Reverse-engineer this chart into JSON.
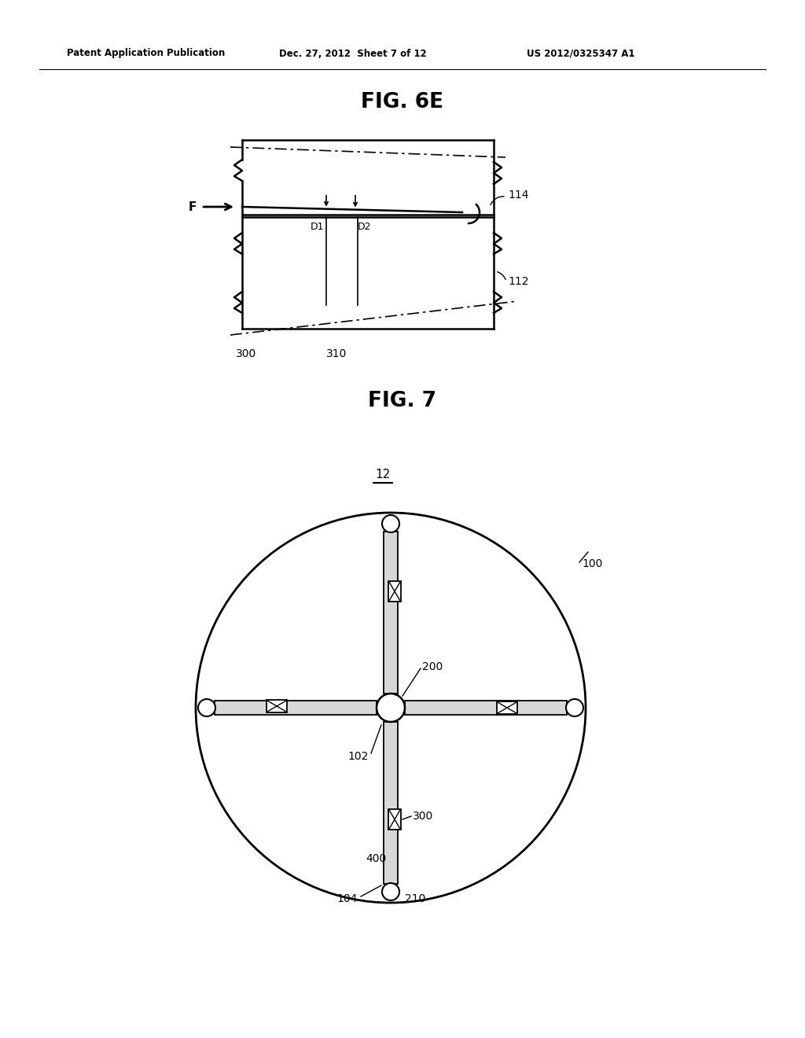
{
  "bg_color": "#ffffff",
  "line_color": "#000000",
  "fig_width": 10.24,
  "fig_height": 13.2,
  "header_text": "Patent Application Publication",
  "header_date": "Dec. 27, 2012  Sheet 7 of 12",
  "header_patent": "US 2012/0325347 A1",
  "fig6e_title": "FIG. 6E",
  "fig7_title": "FIG. 7",
  "label_12": "12",
  "label_100": "100",
  "label_102": "102",
  "label_104": "104",
  "label_200": "200",
  "label_210": "210",
  "label_300": "300",
  "label_400": "400",
  "label_114": "114",
  "label_112": "112",
  "label_310": "310",
  "label_300b": "300",
  "label_D1": "D1",
  "label_D2": "D2",
  "label_F": "F"
}
